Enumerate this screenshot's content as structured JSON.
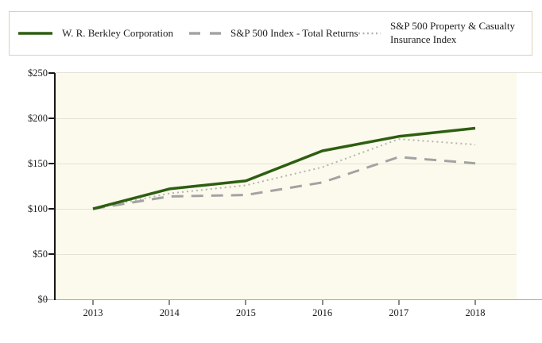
{
  "legend": {
    "items": [
      {
        "label": "W. R. Berkley Corporation",
        "style": "solid",
        "color": "#2e5e12"
      },
      {
        "label": "S&P 500 Index - Total Returns",
        "style": "dashed",
        "color": "#a3a3a3"
      },
      {
        "label": "S&P 500 Property & Casualty Insurance Index",
        "style": "dotted",
        "color": "#b4b4b4"
      }
    ]
  },
  "chart_data": {
    "type": "line",
    "x": [
      2013,
      2014,
      2015,
      2016,
      2017,
      2018
    ],
    "series": [
      {
        "name": "W. R. Berkley Corporation",
        "style": "solid",
        "color": "#2e5e12",
        "values": [
          100,
          122,
          131,
          164,
          180,
          189
        ]
      },
      {
        "name": "S&P 500 Index - Total Returns",
        "style": "dashed",
        "color": "#a3a3a3",
        "values": [
          100,
          113.7,
          115.3,
          129.1,
          157.2,
          150.3
        ]
      },
      {
        "name": "S&P 500 Property & Casualty Insurance Index",
        "style": "dotted",
        "color": "#b4b4b4",
        "values": [
          100,
          117,
          126,
          146,
          177,
          171
        ]
      }
    ],
    "ylim": [
      0,
      250
    ],
    "ytick_labels": [
      "$0",
      "$50",
      "$100",
      "$150",
      "$200",
      "$250"
    ],
    "xtick_labels": [
      "2013",
      "2014",
      "2015",
      "2016",
      "2017",
      "2018"
    ],
    "xlabel": "",
    "ylabel": "",
    "title": "",
    "grid": true,
    "legend_position": "top",
    "plot_background": "#fbfaec"
  }
}
